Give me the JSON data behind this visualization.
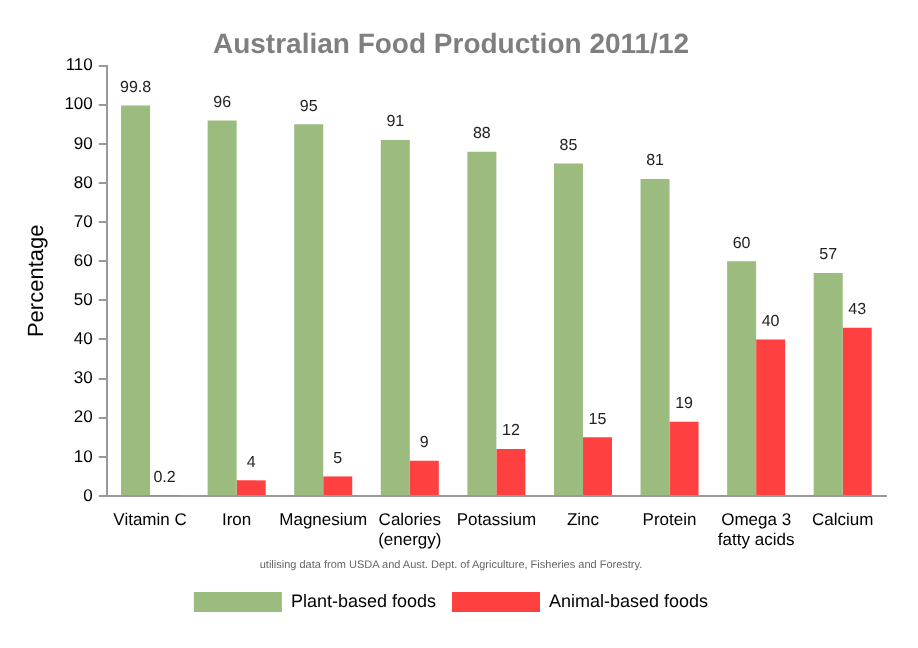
{
  "chart_data": {
    "type": "bar",
    "title": "Australian Food Production 2011/12",
    "ylabel": "Percentage",
    "categories": [
      "Vitamin C",
      "Iron",
      "Magnesium",
      "Calories (energy)",
      "Potassium",
      "Zinc",
      "Protein",
      "Omega 3 fatty acids",
      "Calcium"
    ],
    "series": [
      {
        "name": "Plant-based foods",
        "color": "#9bbb7f",
        "values": [
          99.8,
          96,
          95,
          91,
          88,
          85,
          81,
          60,
          57
        ]
      },
      {
        "name": "Animal-based foods",
        "color": "#ff4040",
        "values": [
          0.2,
          4,
          5,
          9,
          12,
          15,
          19,
          40,
          43
        ]
      }
    ],
    "ylim": [
      0,
      110
    ],
    "yticks": [
      0,
      10,
      20,
      30,
      40,
      50,
      60,
      70,
      80,
      90,
      100,
      110
    ],
    "grid": false,
    "legend": "bottom",
    "data_labels": true,
    "annotations": [
      "utilising data from USDA and Aust. Dept. of Agriculture, Fisheries and Forestry."
    ]
  }
}
